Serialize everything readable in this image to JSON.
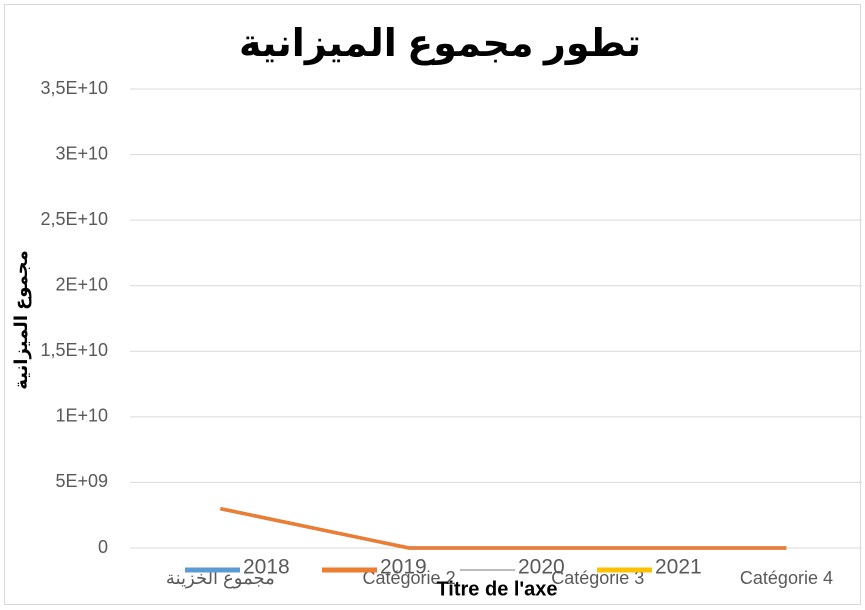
{
  "chart_data": {
    "type": "line",
    "title": "تطور مجموع الميزانية",
    "x_label": "Titre de l'axe",
    "y_label": "مجموع الميزانية",
    "categories": [
      "مجموع الخزينة",
      "Catégorie 2",
      "Catégorie 3",
      "Catégorie 4"
    ],
    "series": [
      {
        "name": "2018",
        "color": "#5b9bd5",
        "values": [
          3000000000,
          0,
          0,
          0
        ]
      },
      {
        "name": "2019",
        "color": "#ed7d31",
        "values": [
          3000000000,
          0,
          0,
          0
        ]
      },
      {
        "name": "2020",
        "color": "#a5a5a5",
        "values": [
          null,
          null,
          null,
          null
        ]
      },
      {
        "name": "2021",
        "color": "#ffc000",
        "values": [
          null,
          null,
          null,
          null
        ]
      }
    ],
    "ylim": [
      0,
      35000000000
    ],
    "yticks": [
      0,
      {
        "value": 5000000000,
        "label": "5E+09"
      },
      {
        "value": 10000000000,
        "label": "1E+10"
      },
      {
        "value": 15000000000,
        "label": "1,5E+10"
      },
      {
        "value": 20000000000,
        "label": "2E+10"
      },
      {
        "value": 25000000000,
        "label": "2,5E+10"
      },
      {
        "value": 30000000000,
        "label": "3E+10"
      },
      {
        "value": 35000000000,
        "label": "3,5E+10"
      }
    ],
    "grid": true,
    "legend": "bottom"
  }
}
